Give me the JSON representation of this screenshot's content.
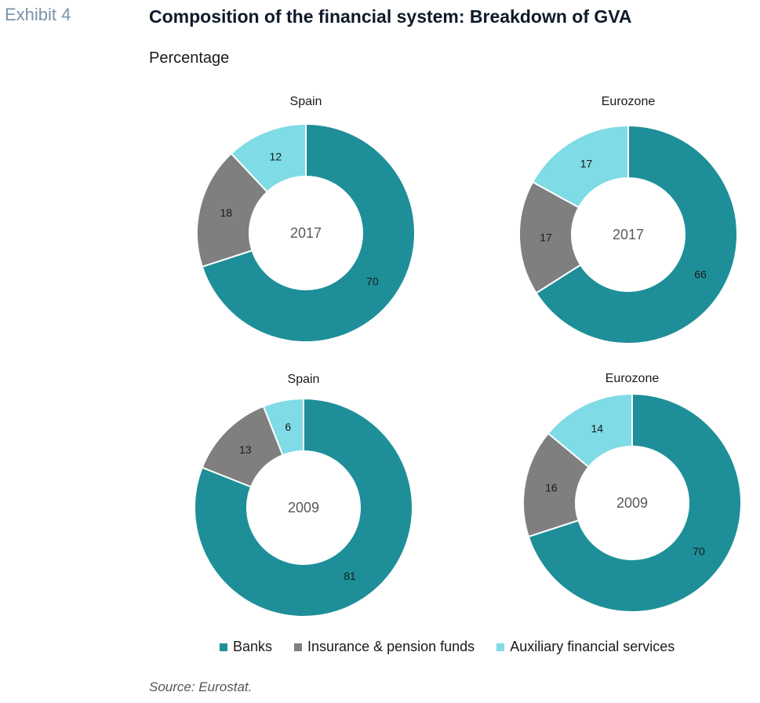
{
  "header": {
    "exhibit": "Exhibit 4",
    "title": "Composition of the financial system: Breakdown of GVA",
    "subtitle": "Percentage"
  },
  "source": "Source: Eurostat.",
  "colors": {
    "banks": "#1e8f99",
    "insurance": "#7f7f7f",
    "auxiliary": "#7fdbe6"
  },
  "chart_data": [
    {
      "type": "pie",
      "variant": "donut",
      "title": "Spain",
      "center_label": "2017",
      "categories": [
        "Banks",
        "Insurance & pension funds",
        "Auxiliary financial services"
      ],
      "values": [
        70,
        18,
        12
      ]
    },
    {
      "type": "pie",
      "variant": "donut",
      "title": "Eurozone",
      "center_label": "2017",
      "categories": [
        "Banks",
        "Insurance & pension funds",
        "Auxiliary financial services"
      ],
      "values": [
        66,
        17,
        17
      ]
    },
    {
      "type": "pie",
      "variant": "donut",
      "title": "Spain",
      "center_label": "2009",
      "categories": [
        "Banks",
        "Insurance & pension funds",
        "Auxiliary financial services"
      ],
      "values": [
        81,
        13,
        6
      ]
    },
    {
      "type": "pie",
      "variant": "donut",
      "title": "Eurozone",
      "center_label": "2009",
      "categories": [
        "Banks",
        "Insurance & pension funds",
        "Auxiliary financial services"
      ],
      "values": [
        70,
        16,
        14
      ]
    }
  ],
  "legend": {
    "position": "bottom",
    "items": [
      "Banks",
      "Insurance & pension funds",
      "Auxiliary financial services"
    ]
  }
}
